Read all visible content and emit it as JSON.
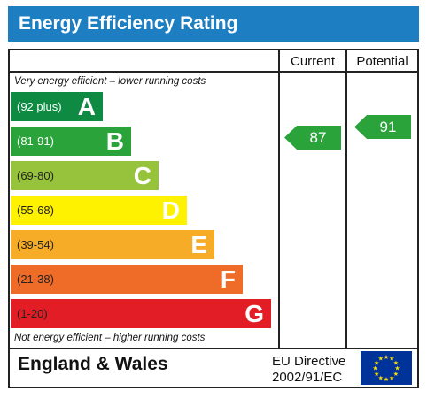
{
  "header": {
    "title": "Energy Efficiency Rating"
  },
  "columns": {
    "current": "Current",
    "potential": "Potential"
  },
  "notes": {
    "top": "Very energy efficient – lower running costs",
    "bottom": "Not energy efficient – higher running costs"
  },
  "bands": [
    {
      "range": "(92 plus)",
      "letter": "A",
      "color": "#0f8a43"
    },
    {
      "range": "(81-91)",
      "letter": "B",
      "color": "#2aa33b"
    },
    {
      "range": "(69-80)",
      "letter": "C",
      "color": "#97c23c"
    },
    {
      "range": "(55-68)",
      "letter": "D",
      "color": "#fff200"
    },
    {
      "range": "(39-54)",
      "letter": "E",
      "color": "#f7ac28"
    },
    {
      "range": "(21-38)",
      "letter": "F",
      "color": "#ef6c28"
    },
    {
      "range": "(1-20)",
      "letter": "G",
      "color": "#e31d25"
    }
  ],
  "ratings": {
    "current": {
      "value": "87",
      "band": "B",
      "color": "#2aa33b"
    },
    "potential": {
      "value": "91",
      "band": "B",
      "color": "#2aa33b"
    }
  },
  "footer": {
    "region": "England & Wales",
    "directive_line1": "EU Directive",
    "directive_line2": "2002/91/EC",
    "flag_icon": "eu-flag-icon",
    "flag_color": "#003399",
    "star_color": "#ffdd00"
  }
}
